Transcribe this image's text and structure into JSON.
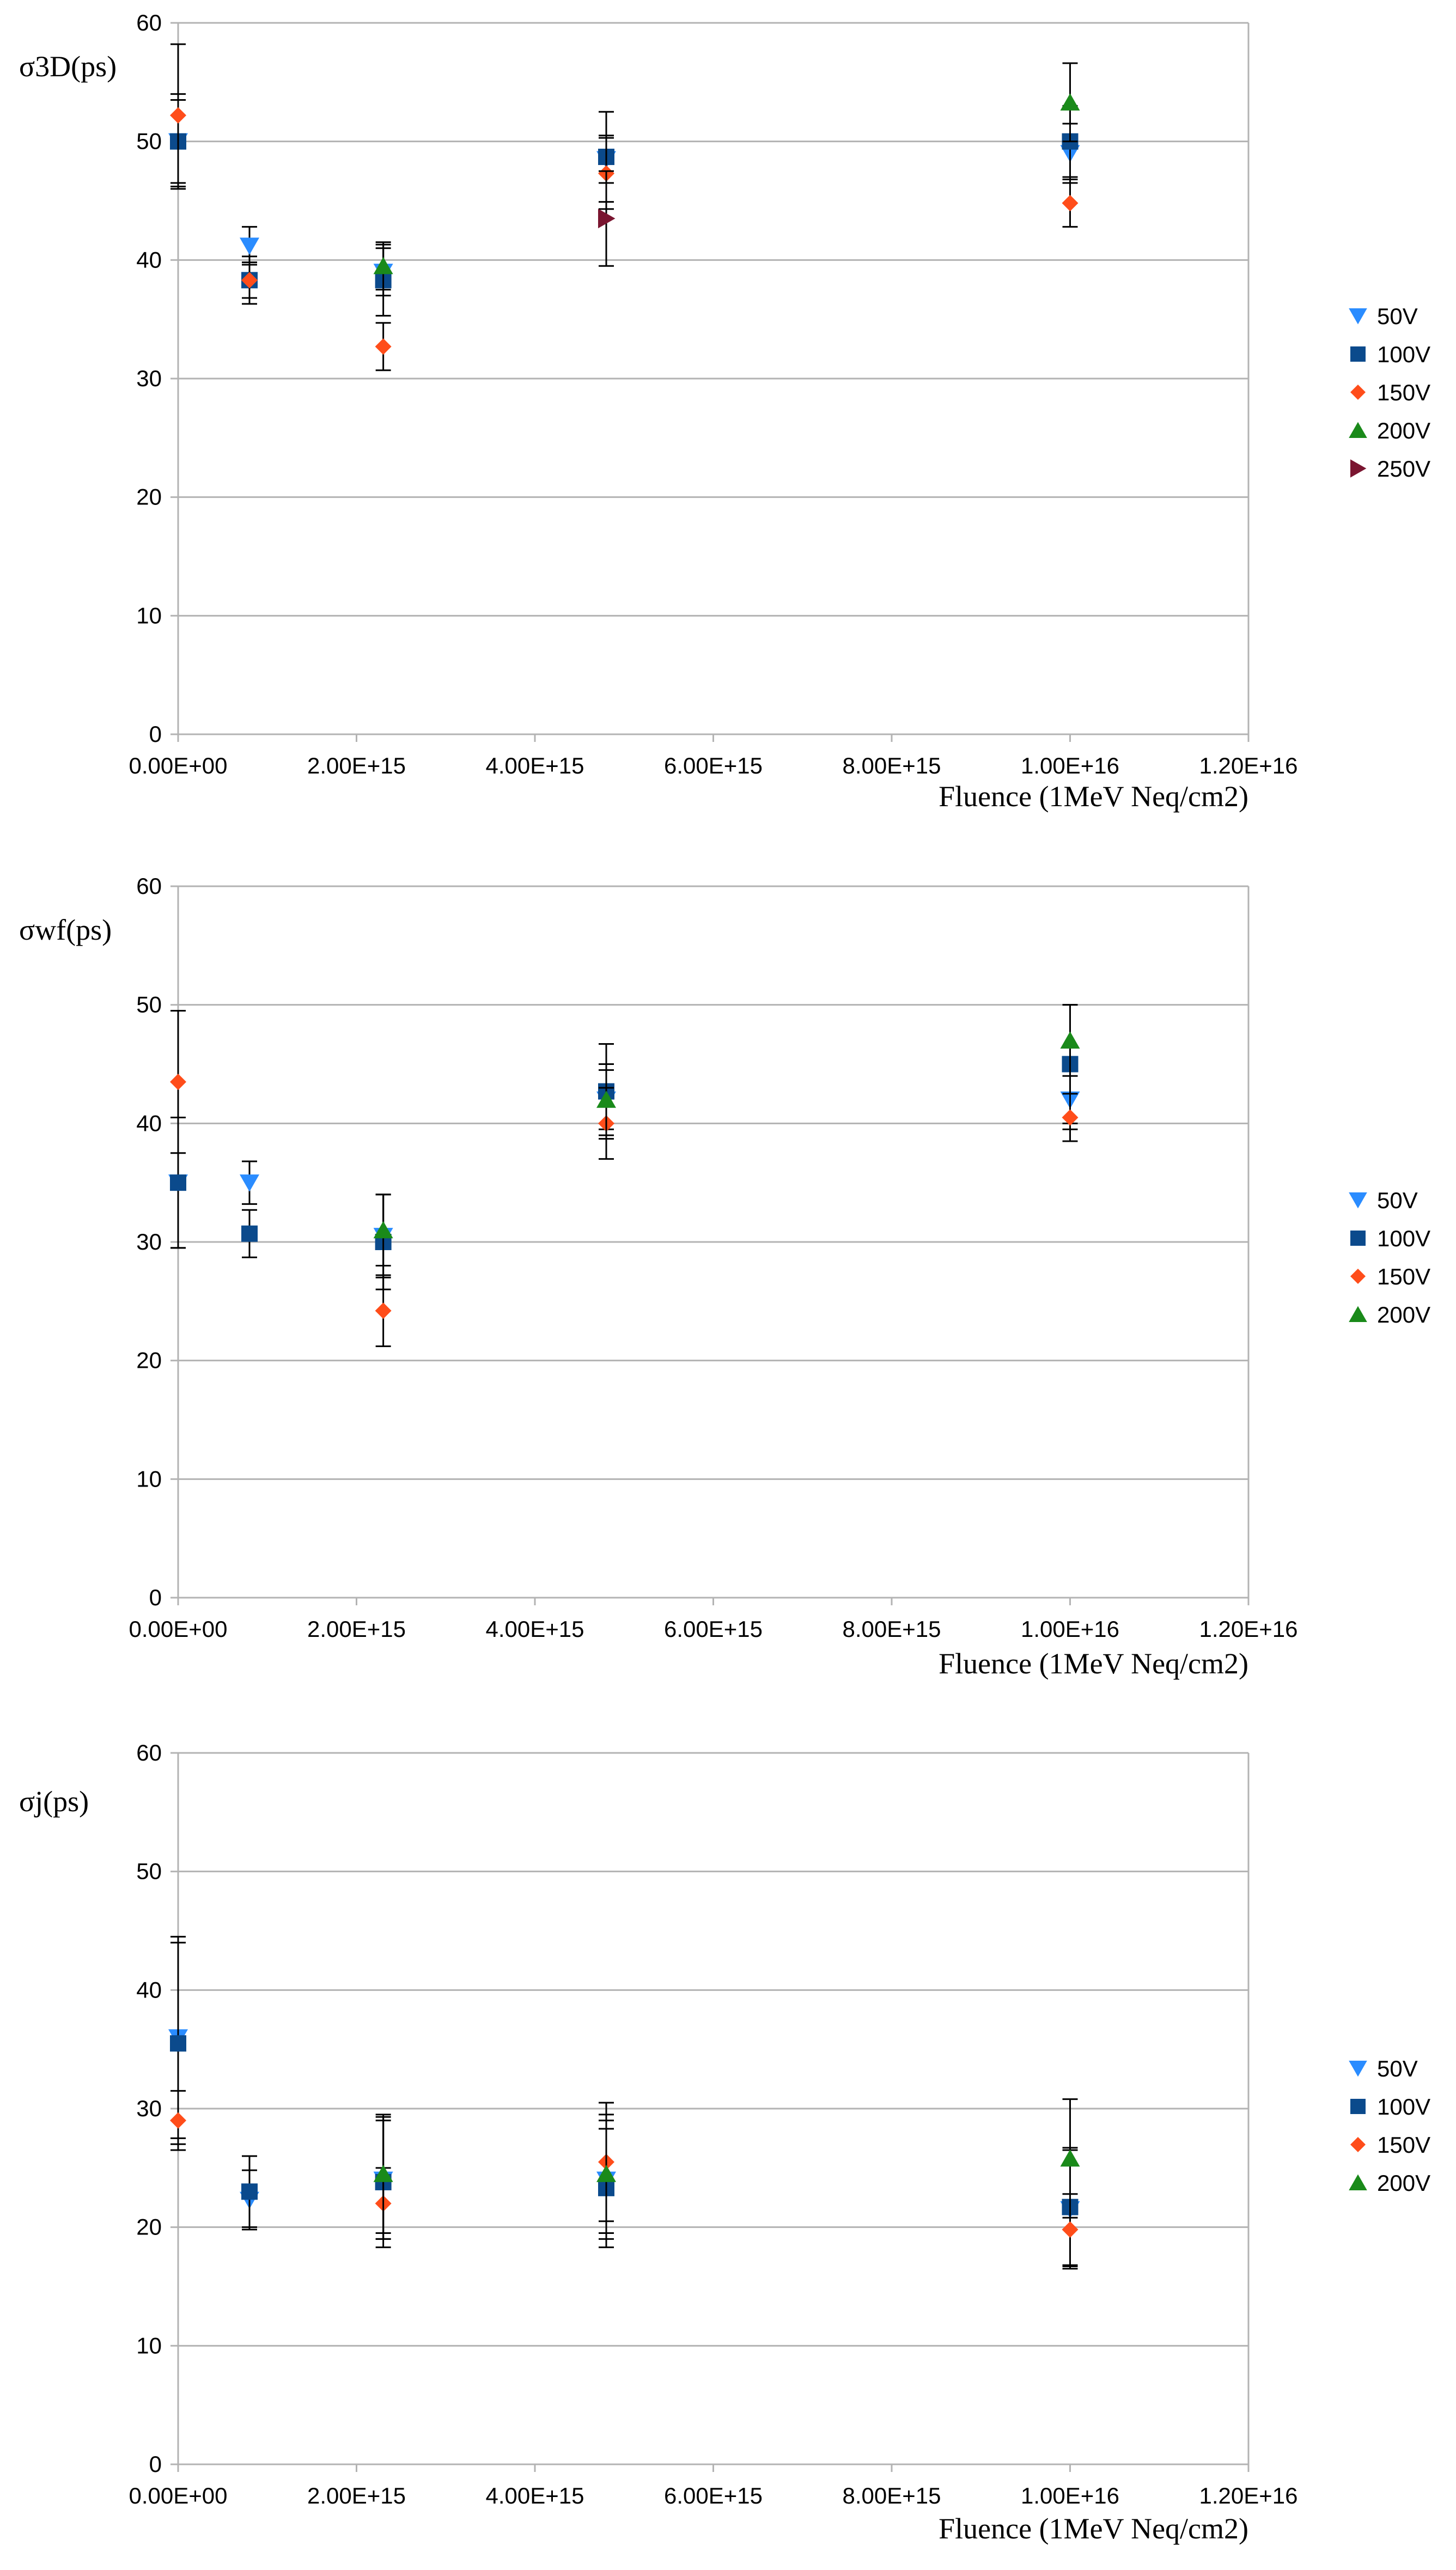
{
  "colors": {
    "50V": "#2a8cff",
    "100V": "#0b4a8c",
    "150V": "#ff4d1a",
    "200V": "#1a8a1a",
    "250V": "#7a1530",
    "grid": "#b3b3b3",
    "errorbar": "#000000"
  },
  "chart_data": [
    {
      "type": "scatter",
      "title": "",
      "ylabel": "σ3D(ps)",
      "xlabel": "Fluence (1MeV Neq/cm2)",
      "xlim": [
        0,
        1.2e+16
      ],
      "ylim": [
        0,
        60
      ],
      "xticks": [
        "0.00E+00",
        "2.00E+15",
        "4.00E+15",
        "6.00E+15",
        "8.00E+15",
        "1.00E+16",
        "1.20E+16"
      ],
      "yticks": [
        "0",
        "10",
        "20",
        "30",
        "40",
        "50",
        "60"
      ],
      "grid": true,
      "legend_position": "right",
      "series": [
        {
          "name": "50V",
          "marker": "triangle-down",
          "points": [
            {
              "x": 0,
              "y": 50.0,
              "err": 3.5
            },
            {
              "x": 800000000000000.0,
              "y": 41.2,
              "err": 1.6
            },
            {
              "x": 2300000000000000.0,
              "y": 39.0,
              "err": 2.0
            },
            {
              "x": 4800000000000000.0,
              "y": 48.5,
              "err": 2.0
            },
            {
              "x": 1e+16,
              "y": 49.0,
              "err": 2.5
            }
          ]
        },
        {
          "name": "100V",
          "marker": "square",
          "points": [
            {
              "x": 0,
              "y": 50.0,
              "err": 4.0
            },
            {
              "x": 800000000000000.0,
              "y": 38.3,
              "err": 2.0
            },
            {
              "x": 2300000000000000.0,
              "y": 38.3,
              "err": 3.0
            },
            {
              "x": 4800000000000000.0,
              "y": 48.7,
              "err": 3.8
            },
            {
              "x": 1e+16,
              "y": 50.0,
              "err": 3.0
            }
          ]
        },
        {
          "name": "150V",
          "marker": "diamond",
          "points": [
            {
              "x": 0,
              "y": 52.2,
              "err": 6.0
            },
            {
              "x": 800000000000000.0,
              "y": 38.3,
              "err": 1.5
            },
            {
              "x": 2300000000000000.0,
              "y": 32.7,
              "err": 2.0
            },
            {
              "x": 4800000000000000.0,
              "y": 47.3,
              "err": 3.0
            },
            {
              "x": 1e+16,
              "y": 44.8,
              "err": 2.0
            }
          ]
        },
        {
          "name": "200V",
          "marker": "triangle-up",
          "points": [
            {
              "x": 2300000000000000.0,
              "y": 39.5,
              "err": 2.0
            },
            {
              "x": 1e+16,
              "y": 53.3,
              "err": 3.3
            }
          ]
        },
        {
          "name": "250V",
          "marker": "triangle-right",
          "points": [
            {
              "x": 4800000000000000.0,
              "y": 43.5,
              "err": 4.0
            }
          ]
        }
      ]
    },
    {
      "type": "scatter",
      "title": "",
      "ylabel": "σwf(ps)",
      "xlabel": "Fluence (1MeV Neq/cm2)",
      "xlim": [
        0,
        1.2e+16
      ],
      "ylim": [
        0,
        60
      ],
      "xticks": [
        "0.00E+00",
        "2.00E+15",
        "4.00E+15",
        "6.00E+15",
        "8.00E+15",
        "1.00E+16",
        "1.20E+16"
      ],
      "yticks": [
        "0",
        "10",
        "20",
        "30",
        "40",
        "50",
        "60"
      ],
      "grid": true,
      "legend_position": "right",
      "series": [
        {
          "name": "50V",
          "marker": "triangle-down",
          "points": [
            {
              "x": 0,
              "y": 35.0,
              "err": 5.5
            },
            {
              "x": 800000000000000.0,
              "y": 35.0,
              "err": 1.8
            },
            {
              "x": 2300000000000000.0,
              "y": 30.5,
              "err": 3.5
            },
            {
              "x": 4800000000000000.0,
              "y": 42.0,
              "err": 2.5
            },
            {
              "x": 1e+16,
              "y": 42.0,
              "err": 2.5
            }
          ]
        },
        {
          "name": "100V",
          "marker": "square",
          "points": [
            {
              "x": 0,
              "y": 35.0,
              "err": 5.5
            },
            {
              "x": 800000000000000.0,
              "y": 30.7,
              "err": 2.0
            },
            {
              "x": 2300000000000000.0,
              "y": 30.0,
              "err": 4.0
            },
            {
              "x": 4800000000000000.0,
              "y": 42.7,
              "err": 4.0
            },
            {
              "x": 1e+16,
              "y": 45.0,
              "err": 5.0
            }
          ]
        },
        {
          "name": "150V",
          "marker": "diamond",
          "points": [
            {
              "x": 0,
              "y": 43.5,
              "err": 6.0
            },
            {
              "x": 2300000000000000.0,
              "y": 24.2,
              "err": 3.0
            },
            {
              "x": 4800000000000000.0,
              "y": 40.0,
              "err": 3.0
            },
            {
              "x": 1e+16,
              "y": 40.5,
              "err": 2.0
            }
          ]
        },
        {
          "name": "200V",
          "marker": "triangle-up",
          "points": [
            {
              "x": 2300000000000000.0,
              "y": 31.0,
              "err": 3.0
            },
            {
              "x": 4800000000000000.0,
              "y": 42.0,
              "err": 3.0
            },
            {
              "x": 1e+16,
              "y": 47.0,
              "err": 3.0
            }
          ]
        }
      ]
    },
    {
      "type": "scatter",
      "title": "",
      "ylabel": "σj(ps)",
      "xlabel": "Fluence (1MeV Neq/cm2)",
      "xlim": [
        0,
        1.2e+16
      ],
      "ylim": [
        0,
        60
      ],
      "xticks": [
        "0.00E+00",
        "2.00E+15",
        "4.00E+15",
        "6.00E+15",
        "8.00E+15",
        "1.00E+16",
        "1.20E+16"
      ],
      "yticks": [
        "0",
        "10",
        "20",
        "30",
        "40",
        "50",
        "60"
      ],
      "grid": true,
      "legend_position": "right",
      "series": [
        {
          "name": "50V",
          "marker": "triangle-down",
          "points": [
            {
              "x": 0,
              "y": 36.0,
              "err": 8.5
            },
            {
              "x": 800000000000000.0,
              "y": 22.3,
              "err": 2.5
            },
            {
              "x": 2300000000000000.0,
              "y": 24.0,
              "err": 5.0
            },
            {
              "x": 4800000000000000.0,
              "y": 24.0,
              "err": 5.0
            },
            {
              "x": 1e+16,
              "y": 21.5,
              "err": 5.0
            }
          ]
        },
        {
          "name": "100V",
          "marker": "square",
          "points": [
            {
              "x": 0,
              "y": 35.5,
              "err": 8.5
            },
            {
              "x": 800000000000000.0,
              "y": 23.0,
              "err": 3.0
            },
            {
              "x": 2300000000000000.0,
              "y": 23.8,
              "err": 5.5
            },
            {
              "x": 4800000000000000.0,
              "y": 23.3,
              "err": 5.0
            },
            {
              "x": 1e+16,
              "y": 21.7,
              "err": 5.0
            }
          ]
        },
        {
          "name": "150V",
          "marker": "diamond",
          "points": [
            {
              "x": 0,
              "y": 29.0,
              "err": 2.5
            },
            {
              "x": 2300000000000000.0,
              "y": 22.0,
              "err": 3.0
            },
            {
              "x": 4800000000000000.0,
              "y": 25.5,
              "err": 5.0
            },
            {
              "x": 1e+16,
              "y": 19.8,
              "err": 3.0
            }
          ]
        },
        {
          "name": "200V",
          "marker": "triangle-up",
          "points": [
            {
              "x": 2300000000000000.0,
              "y": 24.5,
              "err": 5.0
            },
            {
              "x": 4800000000000000.0,
              "y": 24.5,
              "err": 5.0
            },
            {
              "x": 1e+16,
              "y": 25.8,
              "err": 5.0
            }
          ]
        }
      ]
    }
  ]
}
